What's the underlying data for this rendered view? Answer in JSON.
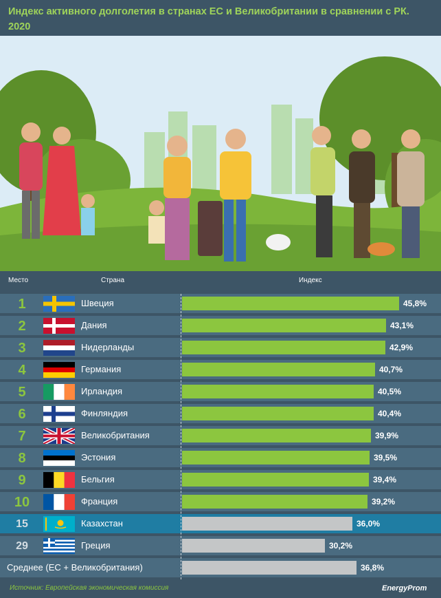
{
  "title": "Индекс активного долголетия в странах ЕС и Великобритании в сравнении с РК. 2020",
  "headers": {
    "rank": "Место",
    "country": "Страна",
    "index": "Индекс"
  },
  "source": "Источник: Европейская экономическая комиссия",
  "logo": "EnergyProm",
  "colors": {
    "background": "#3d5566",
    "row": "#4a6b80",
    "highlight": "#1f7da3",
    "green_bar": "#8cc63f",
    "grey_bar": "#c4c6c7",
    "title": "#9fd45a"
  },
  "rows": [
    {
      "rank": "1",
      "country": "Швеция",
      "label": "45,8%",
      "flag": "sweden-flag"
    },
    {
      "rank": "2",
      "country": "Дания",
      "label": "43,1%",
      "flag": "denmark-flag"
    },
    {
      "rank": "3",
      "country": "Нидерланды",
      "label": "42,9%",
      "flag": "netherlands-flag"
    },
    {
      "rank": "4",
      "country": "Германия",
      "label": "40,7%",
      "flag": "germany-flag"
    },
    {
      "rank": "5",
      "country": "Ирландия",
      "label": "40,5%",
      "flag": "ireland-flag"
    },
    {
      "rank": "6",
      "country": "Финляндия",
      "label": "40,4%",
      "flag": "finland-flag"
    },
    {
      "rank": "7",
      "country": "Великобритания",
      "label": "39,9%",
      "flag": "uk-flag"
    },
    {
      "rank": "8",
      "country": "Эстония",
      "label": "39,5%",
      "flag": "estonia-flag"
    },
    {
      "rank": "9",
      "country": "Бельгия",
      "label": "39,4%",
      "flag": "belgium-flag"
    },
    {
      "rank": "10",
      "country": "Франция",
      "label": "39,2%",
      "flag": "france-flag"
    },
    {
      "rank": "15",
      "country": "Казахстан",
      "label": "36,0%",
      "flag": "kazakhstan-flag"
    },
    {
      "rank": "29",
      "country": "Греция",
      "label": "30,2%",
      "flag": "greece-flag"
    },
    {
      "rank": "",
      "country": "Среднее (ЕС + Великобритания)",
      "label": "36,8%",
      "flag": ""
    }
  ],
  "chart_data": {
    "type": "bar",
    "orientation": "horizontal",
    "title": "Индекс активного долголетия в странах ЕС и Великобритании в сравнении с РК. 2020",
    "categories": [
      "Швеция",
      "Дания",
      "Нидерланды",
      "Германия",
      "Ирландия",
      "Финляндия",
      "Великобритания",
      "Эстония",
      "Бельгия",
      "Франция",
      "Казахстан",
      "Греция",
      "Среднее (ЕС + Великобритания)"
    ],
    "values": [
      45.8,
      43.1,
      42.9,
      40.7,
      40.5,
      40.4,
      39.9,
      39.5,
      39.4,
      39.2,
      36.0,
      30.2,
      36.8
    ],
    "ranks": [
      1,
      2,
      3,
      4,
      5,
      6,
      7,
      8,
      9,
      10,
      15,
      29,
      null
    ],
    "unit": "%",
    "highlighted": "Казахстан",
    "grey_bars": [
      "Казахстан",
      "Греция",
      "Среднее (ЕС + Великобритания)"
    ]
  }
}
